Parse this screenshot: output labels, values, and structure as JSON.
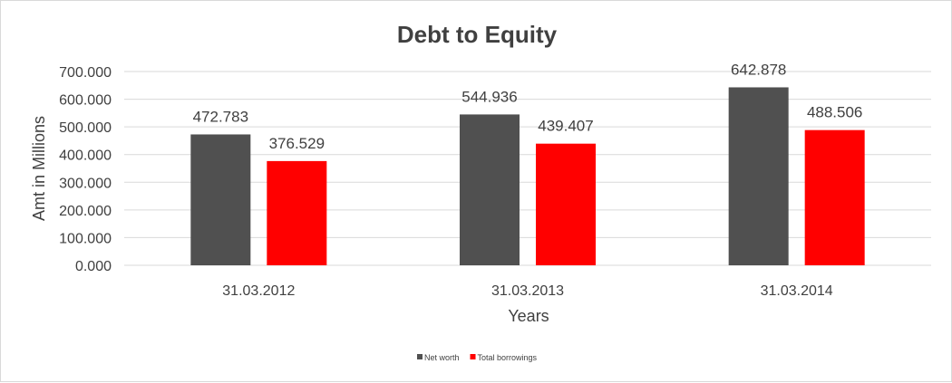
{
  "chart_data": {
    "type": "bar",
    "title": "Debt to Equity",
    "xlabel": "Years",
    "ylabel": "Amt in Millions",
    "categories": [
      "31.03.2012",
      "31.03.2013",
      "31.03.2014"
    ],
    "series": [
      {
        "name": "Net worth",
        "values": [
          472.783,
          544.936,
          642.878
        ],
        "value_labels": [
          "472.783",
          "544.936",
          "642.878"
        ],
        "color": "#505050"
      },
      {
        "name": "Total borrowings",
        "values": [
          376.529,
          439.407,
          488.506
        ],
        "value_labels": [
          "376.529",
          "439.407",
          "488.506"
        ],
        "color": "#ff0000"
      }
    ],
    "ylim": [
      0,
      700
    ],
    "yticks": [
      0,
      100,
      200,
      300,
      400,
      500,
      600,
      700
    ],
    "ytick_labels": [
      "0.000",
      "100.000",
      "200.000",
      "300.000",
      "400.000",
      "500.000",
      "600.000",
      "700.000"
    ],
    "grid": true,
    "legend_position": "bottom"
  }
}
